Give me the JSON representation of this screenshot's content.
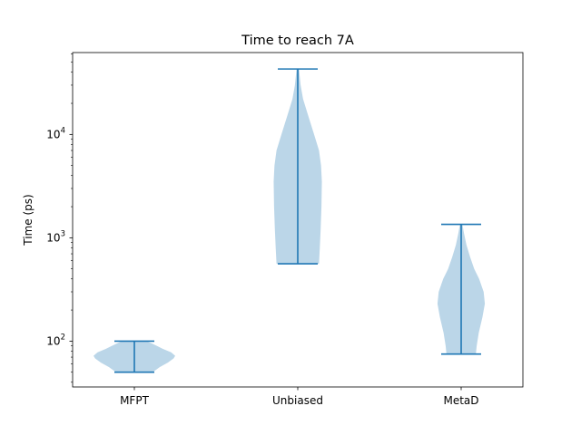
{
  "chart_data": {
    "type": "violin",
    "title": "Time to reach 7A",
    "xlabel": "",
    "ylabel": "Time (ps)",
    "yscale": "log",
    "ylim": [
      36,
      62000
    ],
    "yticks": [
      {
        "value": 100,
        "base": "10",
        "exp": "2"
      },
      {
        "value": 1000,
        "base": "10",
        "exp": "3"
      },
      {
        "value": 10000,
        "base": "10",
        "exp": "4"
      }
    ],
    "categories": [
      "MFPT",
      "Unbiased",
      "MetaD"
    ],
    "violin_color": "#1f77b4",
    "violins": [
      {
        "category": "MFPT",
        "min": 50,
        "max": 100,
        "profile": [
          [
            50,
            0.45
          ],
          [
            56,
            0.62
          ],
          [
            62,
            0.82
          ],
          [
            68,
            0.96
          ],
          [
            72,
            1.0
          ],
          [
            78,
            0.9
          ],
          [
            84,
            0.7
          ],
          [
            90,
            0.55
          ],
          [
            96,
            0.4
          ],
          [
            100,
            0.3
          ]
        ]
      },
      {
        "category": "Unbiased",
        "min": 560,
        "max": 43000,
        "profile": [
          [
            560,
            0.52
          ],
          [
            800,
            0.54
          ],
          [
            1200,
            0.56
          ],
          [
            2000,
            0.58
          ],
          [
            3500,
            0.59
          ],
          [
            5000,
            0.57
          ],
          [
            7000,
            0.52
          ],
          [
            10000,
            0.4
          ],
          [
            15000,
            0.26
          ],
          [
            22000,
            0.13
          ],
          [
            30000,
            0.07
          ],
          [
            43000,
            0.03
          ]
        ]
      },
      {
        "category": "MetaD",
        "min": 75,
        "max": 1350,
        "profile": [
          [
            75,
            0.36
          ],
          [
            90,
            0.38
          ],
          [
            120,
            0.43
          ],
          [
            170,
            0.52
          ],
          [
            230,
            0.58
          ],
          [
            300,
            0.55
          ],
          [
            400,
            0.44
          ],
          [
            500,
            0.32
          ],
          [
            650,
            0.22
          ],
          [
            850,
            0.13
          ],
          [
            1100,
            0.07
          ],
          [
            1350,
            0.03
          ]
        ]
      }
    ]
  }
}
